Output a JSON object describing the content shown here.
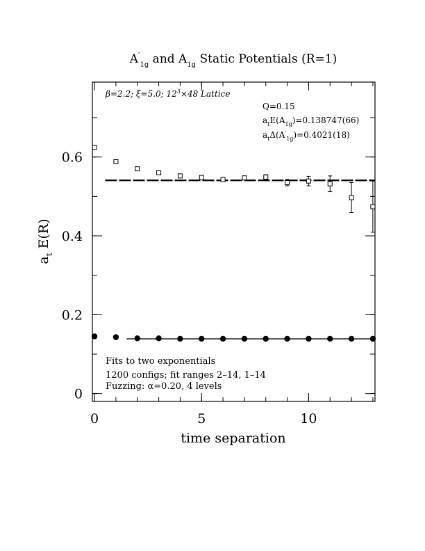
{
  "chart_data": {
    "type": "scatter",
    "title": "A′1g and A1g Static Potentials (R=1)",
    "title_parts": {
      "p1": "A",
      "p1_sup": "′",
      "p1_sub": "1g",
      "p2": " and A",
      "p2_sub": "1g",
      "p3": " Static Potentials (R=1)"
    },
    "xlabel": "time separation",
    "ylabel": "a_t E(R)",
    "ylabel_parts": {
      "main": "a",
      "sub": "t",
      "rest": " E(R)"
    },
    "xlim": [
      -0.1,
      13.1
    ],
    "ylim": [
      -0.02,
      0.79
    ],
    "x_ticks": [
      0,
      5,
      10
    ],
    "x_tick_labels": [
      "0",
      "5",
      "10"
    ],
    "x_minor_step": 1,
    "y_ticks": [
      0,
      0.2,
      0.4,
      0.6
    ],
    "y_tick_labels": [
      "0",
      "0.2",
      "0.4",
      "0.6"
    ],
    "y_minor_step": 0.1,
    "grid": false,
    "header_text": {
      "main": "β=2.2; ξ=5.0; 12",
      "sup": "3",
      "rest": "×48 Lattice"
    },
    "params": {
      "q": "Q=0.15",
      "e1": {
        "a": "a",
        "a_sub": "t",
        "b": "E(A",
        "b_sub": "1g",
        "c": ")=0.138747(66)"
      },
      "e2": {
        "a": "a",
        "a_sub": "t",
        "b": "Δ(A",
        "b_sup": "′",
        "b_sub": "1g",
        "c": ")=0.4021(18)"
      }
    },
    "annotations": [
      "Fits to two exponentials",
      "1200 configs; fit ranges 2–14, 1–14",
      "Fuzzing: α=0.20, 4 levels"
    ],
    "fit_lines": [
      {
        "name": "",
        "y": 0.5408,
        "x_range": [
          0.5,
          13.1
        ],
        "style": "dashed"
      },
      {
        "name": "",
        "y": 0.1387,
        "x_range": [
          1.5,
          13.1
        ],
        "style": "solid"
      }
    ],
    "series": [
      {
        "name": "",
        "marker": "open-square",
        "x": [
          0,
          1,
          2,
          3,
          4,
          5,
          6,
          7,
          8,
          9,
          10,
          11,
          12,
          13
        ],
        "y": [
          0.624,
          0.588,
          0.57,
          0.56,
          0.552,
          0.548,
          0.543,
          0.547,
          0.549,
          0.535,
          0.539,
          0.532,
          0.497,
          0.474
        ],
        "err": [
          0.002,
          0.002,
          0.002,
          0.002,
          0.003,
          0.003,
          0.004,
          0.005,
          0.006,
          0.008,
          0.012,
          0.02,
          0.038,
          0.065
        ]
      },
      {
        "name": "",
        "marker": "filled-circle",
        "x": [
          0,
          1,
          2,
          3,
          4,
          5,
          6,
          7,
          8,
          9,
          10,
          11,
          12,
          13
        ],
        "y": [
          0.145,
          0.143,
          0.14,
          0.14,
          0.139,
          0.139,
          0.139,
          0.139,
          0.139,
          0.139,
          0.139,
          0.139,
          0.139,
          0.139
        ],
        "err": [
          0.001,
          0.001,
          0.001,
          0.001,
          0.001,
          0.001,
          0.001,
          0.001,
          0.001,
          0.001,
          0.001,
          0.001,
          0.001,
          0.001
        ]
      }
    ]
  }
}
